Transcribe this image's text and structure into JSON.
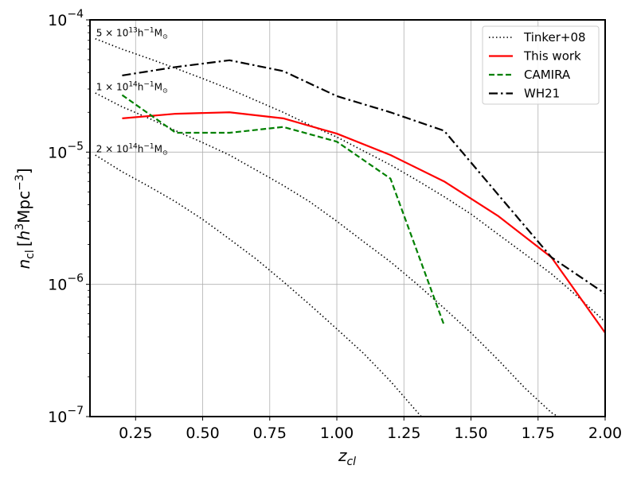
{
  "chart_data": {
    "type": "line",
    "yscale": "log",
    "xlabel": "z",
    "xlabel_sub": "cl",
    "ylabel_parts": {
      "n": "n",
      "sub": "cl",
      "lb": "[",
      "h": "h",
      "unit": "Mpc",
      "rb": "]"
    },
    "xlim": [
      0.08,
      2.0
    ],
    "ylim": [
      1e-07,
      0.0001
    ],
    "grid": true,
    "xticks": [
      0.25,
      0.5,
      0.75,
      1.0,
      1.25,
      1.5,
      1.75,
      2.0
    ],
    "xtick_labels": [
      "0.25",
      "0.50",
      "0.75",
      "1.00",
      "1.25",
      "1.50",
      "1.75",
      "2.00"
    ],
    "yticks": [
      {
        "value": 1e-07,
        "base": "10",
        "exp": "−7"
      },
      {
        "value": 1e-06,
        "base": "10",
        "exp": "−6"
      },
      {
        "value": 1e-05,
        "base": "10",
        "exp": "−5"
      },
      {
        "value": 0.0001,
        "base": "10",
        "exp": "−4"
      }
    ],
    "legend_position": "top-right",
    "series": [
      {
        "name": "Tinker+08",
        "color": "#000000",
        "dash": "dotted",
        "curves": [
          {
            "x": [
              0.1,
              0.2,
              0.3,
              0.4,
              0.5,
              0.6,
              0.7,
              0.8,
              0.9,
              1.0,
              1.1,
              1.2,
              1.3,
              1.4,
              1.5,
              1.6,
              1.7,
              1.8,
              1.9,
              2.0
            ],
            "y": [
              7.2e-05,
              6e-05,
              5.1e-05,
              4.3e-05,
              3.6e-05,
              3e-05,
              2.45e-05,
              2e-05,
              1.6e-05,
              1.3e-05,
              1.02e-05,
              8e-06,
              6.1e-06,
              4.6e-06,
              3.4e-06,
              2.4e-06,
              1.7e-06,
              1.2e-06,
              8e-07,
              5.2e-07
            ]
          },
          {
            "x": [
              0.1,
              0.2,
              0.3,
              0.4,
              0.5,
              0.6,
              0.7,
              0.8,
              0.9,
              1.0,
              1.1,
              1.2,
              1.3,
              1.4,
              1.5,
              1.6,
              1.7,
              1.8,
              1.825
            ],
            "y": [
              2.8e-05,
              2.2e-05,
              1.8e-05,
              1.45e-05,
              1.18e-05,
              9.5e-06,
              7.3e-06,
              5.6e-06,
              4.2e-06,
              3e-06,
              2.1e-06,
              1.48e-06,
              1e-06,
              6.6e-07,
              4.3e-07,
              2.7e-07,
              1.65e-07,
              1.07e-07,
              1e-07
            ]
          },
          {
            "x": [
              0.1,
              0.2,
              0.3,
              0.4,
              0.5,
              0.6,
              0.7,
              0.8,
              0.9,
              1.0,
              1.1,
              1.2,
              1.3,
              1.315
            ],
            "y": [
              9.5e-06,
              7.1e-06,
              5.5e-06,
              4.2e-06,
              3.1e-06,
              2.2e-06,
              1.55e-06,
              1.05e-06,
              7e-07,
              4.6e-07,
              3e-07,
              1.85e-07,
              1.08e-07,
              1e-07
            ]
          }
        ]
      },
      {
        "name": "This work",
        "color": "#ff0000",
        "dash": "solid",
        "curves": [
          {
            "x": [
              0.2,
              0.4,
              0.6,
              0.8,
              1.0,
              1.2,
              1.4,
              1.6,
              1.8,
              2.0
            ],
            "y": [
              1.8e-05,
              1.95e-05,
              2e-05,
              1.8e-05,
              1.38e-05,
              9.5e-06,
              6e-06,
              3.3e-06,
              1.6e-06,
              4.3e-07
            ]
          }
        ]
      },
      {
        "name": "CAMIRA",
        "color": "#008000",
        "dash": "dashed",
        "curves": [
          {
            "x": [
              0.2,
              0.4,
              0.6,
              0.8,
              1.0,
              1.2,
              1.4
            ],
            "y": [
              2.7e-05,
              1.4e-05,
              1.4e-05,
              1.55e-05,
              1.2e-05,
              6.3e-06,
              4.9e-07
            ]
          }
        ]
      },
      {
        "name": "WH21",
        "color": "#000000",
        "dash": "dashdot",
        "curves": [
          {
            "x": [
              0.2,
              0.4,
              0.6,
              0.8,
              1.0,
              1.2,
              1.4,
              1.6,
              1.8,
              2.0
            ],
            "y": [
              3.8e-05,
              4.4e-05,
              4.95e-05,
              4.1e-05,
              2.65e-05,
              2e-05,
              1.45e-05,
              4.8e-06,
              1.6e-06,
              8.5e-07
            ]
          }
        ]
      }
    ],
    "annotations": [
      {
        "coef": "5 × 10",
        "exp": "13",
        "units": "h",
        "uexp": "−1",
        "mass": "M",
        "sub": "⊙",
        "x": 0.1,
        "y": 7.3e-05
      },
      {
        "coef": "1 × 10",
        "exp": "14",
        "units": "h",
        "uexp": "−1",
        "mass": "M",
        "sub": "⊙",
        "x": 0.1,
        "y": 2.85e-05
      },
      {
        "coef": "2 × 10",
        "exp": "14",
        "units": "h",
        "uexp": "−1",
        "mass": "M",
        "sub": "⊙",
        "x": 0.1,
        "y": 9.7e-06
      }
    ]
  }
}
